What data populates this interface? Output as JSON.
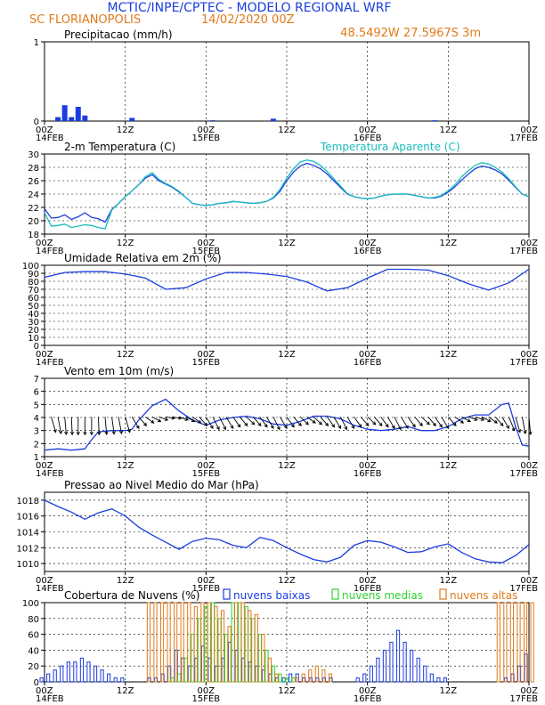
{
  "header": {
    "title": "MCTIC/INPE/CPTEC - MODELO REGIONAL WRF",
    "location": "SC FLORIANOPOLIS",
    "run": "14/02/2020 00Z",
    "coords": "48.5492W 27.5967S 3m",
    "colors": {
      "title": "#1a3de0",
      "orange": "#e07a1a"
    }
  },
  "x_ticks": [
    {
      "h": 0,
      "top": "00Z",
      "bottom": "14FEB"
    },
    {
      "h": 12,
      "top": "12Z",
      "bottom": ""
    },
    {
      "h": 24,
      "top": "00Z",
      "bottom": "15FEB"
    },
    {
      "h": 36,
      "top": "12Z",
      "bottom": ""
    },
    {
      "h": 48,
      "top": "00Z",
      "bottom": "16FEB"
    },
    {
      "h": 60,
      "top": "12Z",
      "bottom": ""
    },
    {
      "h": 72,
      "top": "00Z",
      "bottom": "17FEB"
    }
  ],
  "chart_data": [
    {
      "id": "precip",
      "type": "bar",
      "title": "Precipitacao (mm/h)",
      "ylim": [
        0,
        1
      ],
      "yticks": [
        0,
        1
      ],
      "x_hours": [
        2,
        3,
        4,
        5,
        6,
        13,
        25,
        34,
        58
      ],
      "values": [
        0.05,
        0.2,
        0.05,
        0.18,
        0.07,
        0.04,
        0.01,
        0.03,
        0.01
      ],
      "color": "#1a3de0"
    },
    {
      "id": "temp",
      "type": "line",
      "title": "2-m Temperatura (C)",
      "legend_right": "Temperatura Aparente (C)",
      "ylim": [
        18,
        30
      ],
      "yticks": [
        18,
        20,
        22,
        24,
        26,
        28,
        30
      ],
      "x": [
        0,
        1,
        2,
        3,
        4,
        5,
        6,
        7,
        8,
        9,
        10,
        11,
        12,
        13,
        14,
        15,
        16,
        17,
        18,
        19,
        20,
        21,
        22,
        23,
        24,
        25,
        26,
        27,
        28,
        29,
        30,
        31,
        32,
        33,
        34,
        35,
        36,
        37,
        38,
        39,
        40,
        41,
        42,
        43,
        44,
        45,
        46,
        47,
        48,
        49,
        50,
        51,
        52,
        53,
        54,
        55,
        56,
        57,
        58,
        59,
        60,
        61,
        62,
        63,
        64,
        65,
        66,
        67,
        68,
        69,
        70,
        71,
        72
      ],
      "series": [
        {
          "name": "2-m Temperatura (C)",
          "color": "#1a3de0",
          "values": [
            21.8,
            20.4,
            20.5,
            20.9,
            20.2,
            20.6,
            21.2,
            20.5,
            20.3,
            19.8,
            21.7,
            22.6,
            23.6,
            24.5,
            25.4,
            26.4,
            26.9,
            26.0,
            25.5,
            25.0,
            24.3,
            23.5,
            22.6,
            22.4,
            22.3,
            22.4,
            22.6,
            22.7,
            22.9,
            22.8,
            22.7,
            22.6,
            22.7,
            22.9,
            23.4,
            24.4,
            26.0,
            27.3,
            28.2,
            28.6,
            28.3,
            27.8,
            27.0,
            26.0,
            25.0,
            24.0,
            23.6,
            23.4,
            23.3,
            23.4,
            23.7,
            23.9,
            24.0,
            24.0,
            24.0,
            23.8,
            23.6,
            23.4,
            23.4,
            23.7,
            24.3,
            25.1,
            26.1,
            27.0,
            27.8,
            28.2,
            28.0,
            27.6,
            27.0,
            26.1,
            25.0,
            24.0,
            23.6
          ]
        },
        {
          "name": "Temperatura Aparente (C)",
          "color": "#19bcbc",
          "values": [
            21.2,
            19.2,
            19.3,
            19.5,
            19.0,
            19.2,
            19.4,
            19.3,
            19.0,
            18.8,
            21.6,
            22.6,
            23.6,
            24.5,
            25.4,
            26.6,
            27.2,
            26.2,
            25.6,
            25.1,
            24.4,
            23.5,
            22.6,
            22.4,
            22.3,
            22.4,
            22.6,
            22.7,
            22.9,
            22.8,
            22.7,
            22.6,
            22.7,
            22.9,
            23.5,
            24.7,
            26.4,
            27.8,
            28.8,
            29.1,
            28.9,
            28.3,
            27.4,
            26.3,
            25.2,
            24.1,
            23.6,
            23.4,
            23.3,
            23.4,
            23.7,
            23.9,
            24.0,
            24.0,
            24.0,
            23.8,
            23.6,
            23.4,
            23.5,
            23.8,
            24.5,
            25.4,
            26.6,
            27.5,
            28.3,
            28.7,
            28.5,
            28.0,
            27.3,
            26.3,
            25.1,
            24.0,
            23.6
          ]
        }
      ]
    },
    {
      "id": "rh",
      "type": "line",
      "title": "Umidade Relativa em 2m (%)",
      "ylim": [
        0,
        100
      ],
      "yticks": [
        0,
        10,
        20,
        30,
        40,
        50,
        60,
        70,
        80,
        90,
        100
      ],
      "x": [
        0,
        3,
        6,
        9,
        12,
        15,
        18,
        21,
        24,
        27,
        30,
        33,
        36,
        39,
        42,
        45,
        48,
        51,
        54,
        57,
        60,
        63,
        66,
        69,
        72
      ],
      "series": [
        {
          "name": "",
          "color": "#1a3de0",
          "values": [
            85,
            91,
            92,
            92,
            89,
            84,
            70,
            72,
            83,
            91,
            91,
            89,
            86,
            79,
            68,
            72,
            84,
            95,
            95,
            94,
            87,
            77,
            69,
            78,
            95
          ]
        }
      ]
    },
    {
      "id": "wind",
      "type": "line",
      "title": "Vento em 10m (m/s)",
      "ylim": [
        1,
        7
      ],
      "yticks": [
        1,
        2,
        3,
        4,
        5,
        6,
        7
      ],
      "x": [
        0,
        2,
        4,
        6,
        7,
        8,
        10,
        12,
        13,
        14,
        16,
        18,
        20,
        22,
        24,
        26,
        28,
        30,
        32,
        34,
        36,
        38,
        40,
        42,
        44,
        46,
        48,
        50,
        52,
        54,
        56,
        58,
        60,
        62,
        64,
        66,
        68,
        69,
        70,
        71,
        72
      ],
      "series": [
        {
          "name": "",
          "color": "#1a3de0",
          "values": [
            1.5,
            1.6,
            1.5,
            1.6,
            2.3,
            2.9,
            3.0,
            3.0,
            3.1,
            3.8,
            4.9,
            5.4,
            4.5,
            3.8,
            3.4,
            3.8,
            4.0,
            4.1,
            3.9,
            3.5,
            3.4,
            3.7,
            4.1,
            4.1,
            3.9,
            3.4,
            3.1,
            3.0,
            3.1,
            3.3,
            3.0,
            3.0,
            3.3,
            3.9,
            4.2,
            4.2,
            5.0,
            5.1,
            3.3,
            1.9,
            1.8
          ]
        }
      ],
      "vector_hours": [
        1,
        2,
        3,
        4,
        5,
        6,
        7,
        8,
        9,
        10,
        11,
        12,
        13,
        14,
        15,
        16,
        17,
        18,
        19,
        20,
        21,
        22,
        23,
        24,
        25,
        26,
        27,
        28,
        29,
        30,
        31,
        32,
        33,
        34,
        35,
        36,
        37,
        38,
        39,
        40,
        41,
        42,
        43,
        44,
        45,
        46,
        47,
        48,
        49,
        50,
        51,
        52,
        53,
        54,
        55,
        56,
        57,
        58,
        59,
        60,
        61,
        62,
        63,
        64,
        65,
        66,
        67,
        68,
        69,
        70,
        71,
        72
      ],
      "vector_dir_deg": [
        300,
        290,
        280,
        275,
        270,
        270,
        270,
        275,
        280,
        285,
        290,
        300,
        320,
        330,
        340,
        345,
        350,
        355,
        355,
        350,
        345,
        340,
        330,
        320,
        315,
        315,
        320,
        325,
        330,
        335,
        330,
        325,
        320,
        315,
        320,
        325,
        330,
        335,
        340,
        335,
        330,
        325,
        320,
        315,
        320,
        325,
        330,
        335,
        330,
        325,
        320,
        315,
        320,
        325,
        330,
        335,
        330,
        325,
        320,
        330,
        340,
        345,
        350,
        350,
        345,
        340,
        330,
        320,
        310,
        300,
        290,
        280
      ]
    },
    {
      "id": "pressure",
      "type": "line",
      "title": "Pressao ao Nivel Medio do Mar (hPa)",
      "ylim": [
        1009,
        1019
      ],
      "yticks": [
        1010,
        1012,
        1014,
        1016,
        1018
      ],
      "x": [
        0,
        2,
        4,
        6,
        8,
        10,
        12,
        14,
        16,
        18,
        20,
        22,
        24,
        26,
        28,
        30,
        32,
        34,
        36,
        38,
        40,
        42,
        44,
        46,
        48,
        50,
        52,
        54,
        56,
        58,
        60,
        62,
        64,
        66,
        68,
        70,
        72
      ],
      "series": [
        {
          "name": "",
          "color": "#1a3de0",
          "values": [
            1018,
            1017.2,
            1016.5,
            1015.6,
            1016.4,
            1016.9,
            1016.0,
            1014.6,
            1013.6,
            1012.7,
            1011.8,
            1012.8,
            1013.2,
            1013.0,
            1012.3,
            1012.0,
            1013.3,
            1012.9,
            1012.0,
            1011.2,
            1010.5,
            1010.2,
            1010.8,
            1012.3,
            1012.9,
            1012.7,
            1012.1,
            1011.4,
            1011.5,
            1012.1,
            1012.5,
            1011.4,
            1010.6,
            1010.2,
            1010.1,
            1011.0,
            1012.4
          ]
        }
      ]
    },
    {
      "id": "clouds",
      "type": "bar",
      "title": "Cobertura de Nuvens (%)",
      "ylim": [
        0,
        100
      ],
      "yticks": [
        0,
        20,
        40,
        60,
        80,
        100
      ],
      "x": [
        0,
        1,
        2,
        3,
        4,
        5,
        6,
        7,
        8,
        9,
        10,
        11,
        12,
        13,
        14,
        15,
        16,
        17,
        18,
        19,
        20,
        21,
        22,
        23,
        24,
        25,
        26,
        27,
        28,
        29,
        30,
        31,
        32,
        33,
        34,
        35,
        36,
        37,
        38,
        39,
        40,
        41,
        42,
        43,
        44,
        45,
        46,
        47,
        48,
        49,
        50,
        51,
        52,
        53,
        54,
        55,
        56,
        57,
        58,
        59,
        60,
        61,
        62,
        63,
        64,
        65,
        66,
        67,
        68,
        69,
        70,
        71,
        72
      ],
      "series": [
        {
          "name": "nuvens baixas",
          "color": "#1a3de0",
          "values": [
            5,
            10,
            15,
            20,
            25,
            25,
            30,
            25,
            20,
            15,
            10,
            5,
            5,
            0,
            0,
            0,
            5,
            5,
            10,
            20,
            40,
            30,
            20,
            30,
            45,
            30,
            20,
            30,
            50,
            40,
            30,
            25,
            20,
            15,
            10,
            5,
            5,
            10,
            10,
            5,
            5,
            5,
            5,
            5,
            0,
            0,
            0,
            5,
            10,
            20,
            30,
            40,
            50,
            65,
            50,
            40,
            30,
            20,
            10,
            5,
            5,
            0,
            0,
            0,
            0,
            0,
            0,
            0,
            0,
            5,
            10,
            20,
            35
          ]
        },
        {
          "name": "nuvens medias",
          "color": "#2ed02e",
          "values": [
            0,
            0,
            0,
            0,
            0,
            0,
            0,
            0,
            0,
            0,
            0,
            0,
            0,
            0,
            0,
            0,
            0,
            0,
            0,
            5,
            10,
            30,
            60,
            80,
            95,
            100,
            80,
            60,
            100,
            100,
            95,
            80,
            60,
            40,
            20,
            10,
            5,
            5,
            0,
            0,
            0,
            0,
            0,
            0,
            0,
            0,
            0,
            0,
            0,
            0,
            0,
            0,
            0,
            0,
            0,
            0,
            0,
            0,
            0,
            0,
            0,
            0,
            0,
            0,
            0,
            0,
            0,
            0,
            0,
            0,
            0,
            0,
            0
          ]
        },
        {
          "name": "nuvens altas",
          "color": "#e07a1a",
          "values": [
            0,
            0,
            0,
            0,
            0,
            0,
            0,
            0,
            0,
            0,
            0,
            0,
            0,
            0,
            0,
            100,
            100,
            100,
            100,
            100,
            100,
            100,
            95,
            100,
            100,
            95,
            90,
            70,
            100,
            100,
            90,
            85,
            60,
            30,
            10,
            0,
            0,
            5,
            10,
            15,
            20,
            15,
            10,
            0,
            0,
            0,
            0,
            0,
            0,
            0,
            0,
            0,
            0,
            0,
            0,
            0,
            0,
            0,
            0,
            0,
            0,
            0,
            0,
            0,
            0,
            0,
            0,
            100,
            100,
            100,
            100,
            100,
            100
          ]
        }
      ]
    }
  ]
}
